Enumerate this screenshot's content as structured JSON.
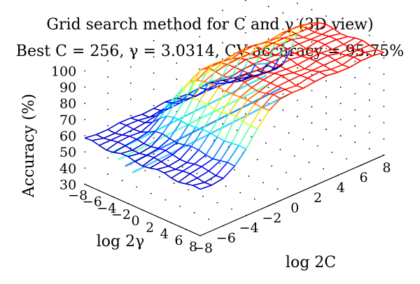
{
  "chart_data": {
    "type": "surface3d",
    "title_line1": "Grid search method for C and γ (3D view)",
    "title_line2": "Best C = 256, γ = 3.0314, CV accuracy = 95.75%",
    "zlabel": "Accuracy (%)",
    "xlabel": "log 2C",
    "ylabel": "log 2γ",
    "z_ticks": [
      "100",
      "90",
      "80",
      "70",
      "60",
      "50",
      "40",
      "30"
    ],
    "x_ticks": [
      "−8",
      "−6",
      "−4",
      "−2",
      "0",
      "2",
      "4",
      "6",
      "8"
    ],
    "y_ticks": [
      "8",
      "6",
      "4",
      "2",
      "0",
      "−2",
      "−4",
      "−6",
      "−8"
    ],
    "zlim": [
      30,
      100
    ],
    "xlim": [
      -8,
      8
    ],
    "ylim": [
      -8,
      8
    ],
    "grid": "dotted",
    "colormap": "jet",
    "best": {
      "C": 256,
      "gamma": 3.0314,
      "cv_accuracy": 95.75
    }
  }
}
